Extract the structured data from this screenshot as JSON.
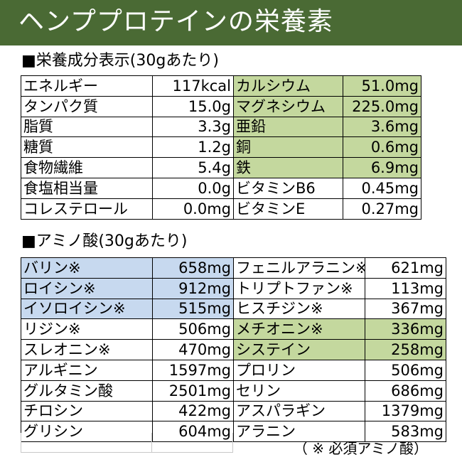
{
  "header": {
    "title": "ヘンププロテインの栄養素"
  },
  "nutrition": {
    "title": "■栄養成分表示(30gあたり)",
    "rows": [
      {
        "left_label": "エネルギー",
        "left_value": "117kcal",
        "right_label": "カルシウム",
        "right_value": "51.0mg",
        "right_highlight": true
      },
      {
        "left_label": "タンパク質",
        "left_value": "15.0g",
        "right_label": "マグネシウム",
        "right_value": "225.0mg",
        "right_highlight": true
      },
      {
        "left_label": "脂質",
        "left_value": "3.3g",
        "right_label": "亜鉛",
        "right_value": "3.6mg",
        "right_highlight": true
      },
      {
        "left_label": "糖質",
        "left_value": "1.2g",
        "right_label": "銅",
        "right_value": "0.6mg",
        "right_highlight": true
      },
      {
        "left_label": "食物繊維",
        "left_value": "5.4g",
        "right_label": "鉄",
        "right_value": "6.9mg",
        "right_highlight": true
      },
      {
        "left_label": "食塩相当量",
        "left_value": "0.0g",
        "right_label": "ビタミンB6",
        "right_value": "0.45mg",
        "right_highlight": false
      },
      {
        "left_label": "コレステロール",
        "left_value": "0.0mg",
        "right_label": "ビタミンE",
        "right_value": "0.27mg",
        "right_highlight": false
      }
    ]
  },
  "amino": {
    "title": "■アミノ酸(30gあたり)",
    "rows": [
      {
        "left_label": "バリン※",
        "left_value": "658mg",
        "left_highlight": true,
        "right_label": "フェニルアラニン※",
        "right_value": "621mg",
        "right_highlight": false
      },
      {
        "left_label": "ロイシン※",
        "left_value": "912mg",
        "left_highlight": true,
        "right_label": "トリプトファン※",
        "right_value": "113mg",
        "right_highlight": false
      },
      {
        "left_label": "イソロイシン※",
        "left_value": "515mg",
        "left_highlight": true,
        "right_label": "ヒスチジン※",
        "right_value": "367mg",
        "right_highlight": false
      },
      {
        "left_label": "リジン※",
        "left_value": "506mg",
        "left_highlight": false,
        "right_label": "メチオニン※",
        "right_value": "336mg",
        "right_highlight": true
      },
      {
        "left_label": "スレオニン※",
        "left_value": "470mg",
        "left_highlight": false,
        "right_label": "システイン",
        "right_value": "258mg",
        "right_highlight": true
      },
      {
        "left_label": "アルギニン",
        "left_value": "1597mg",
        "left_highlight": false,
        "right_label": "プロリン",
        "right_value": "506mg",
        "right_highlight": false
      },
      {
        "left_label": "グルタミン酸",
        "left_value": "2501mg",
        "left_highlight": false,
        "right_label": "セリン",
        "right_value": "686mg",
        "right_highlight": false
      },
      {
        "left_label": "チロシン",
        "left_value": "422mg",
        "left_highlight": false,
        "right_label": "アスパラギン",
        "right_value": "1379mg",
        "right_highlight": false
      },
      {
        "left_label": "グリシン",
        "left_value": "604mg",
        "left_highlight": false,
        "right_label": "アラニン",
        "right_value": "583mg",
        "right_highlight": false
      }
    ],
    "footnote": "（ ※ 必須アミノ酸）"
  },
  "colors": {
    "header_bg": "#4a6a34",
    "green_highlight": "#c4d89e",
    "blue_highlight": "#c7d9ef"
  }
}
